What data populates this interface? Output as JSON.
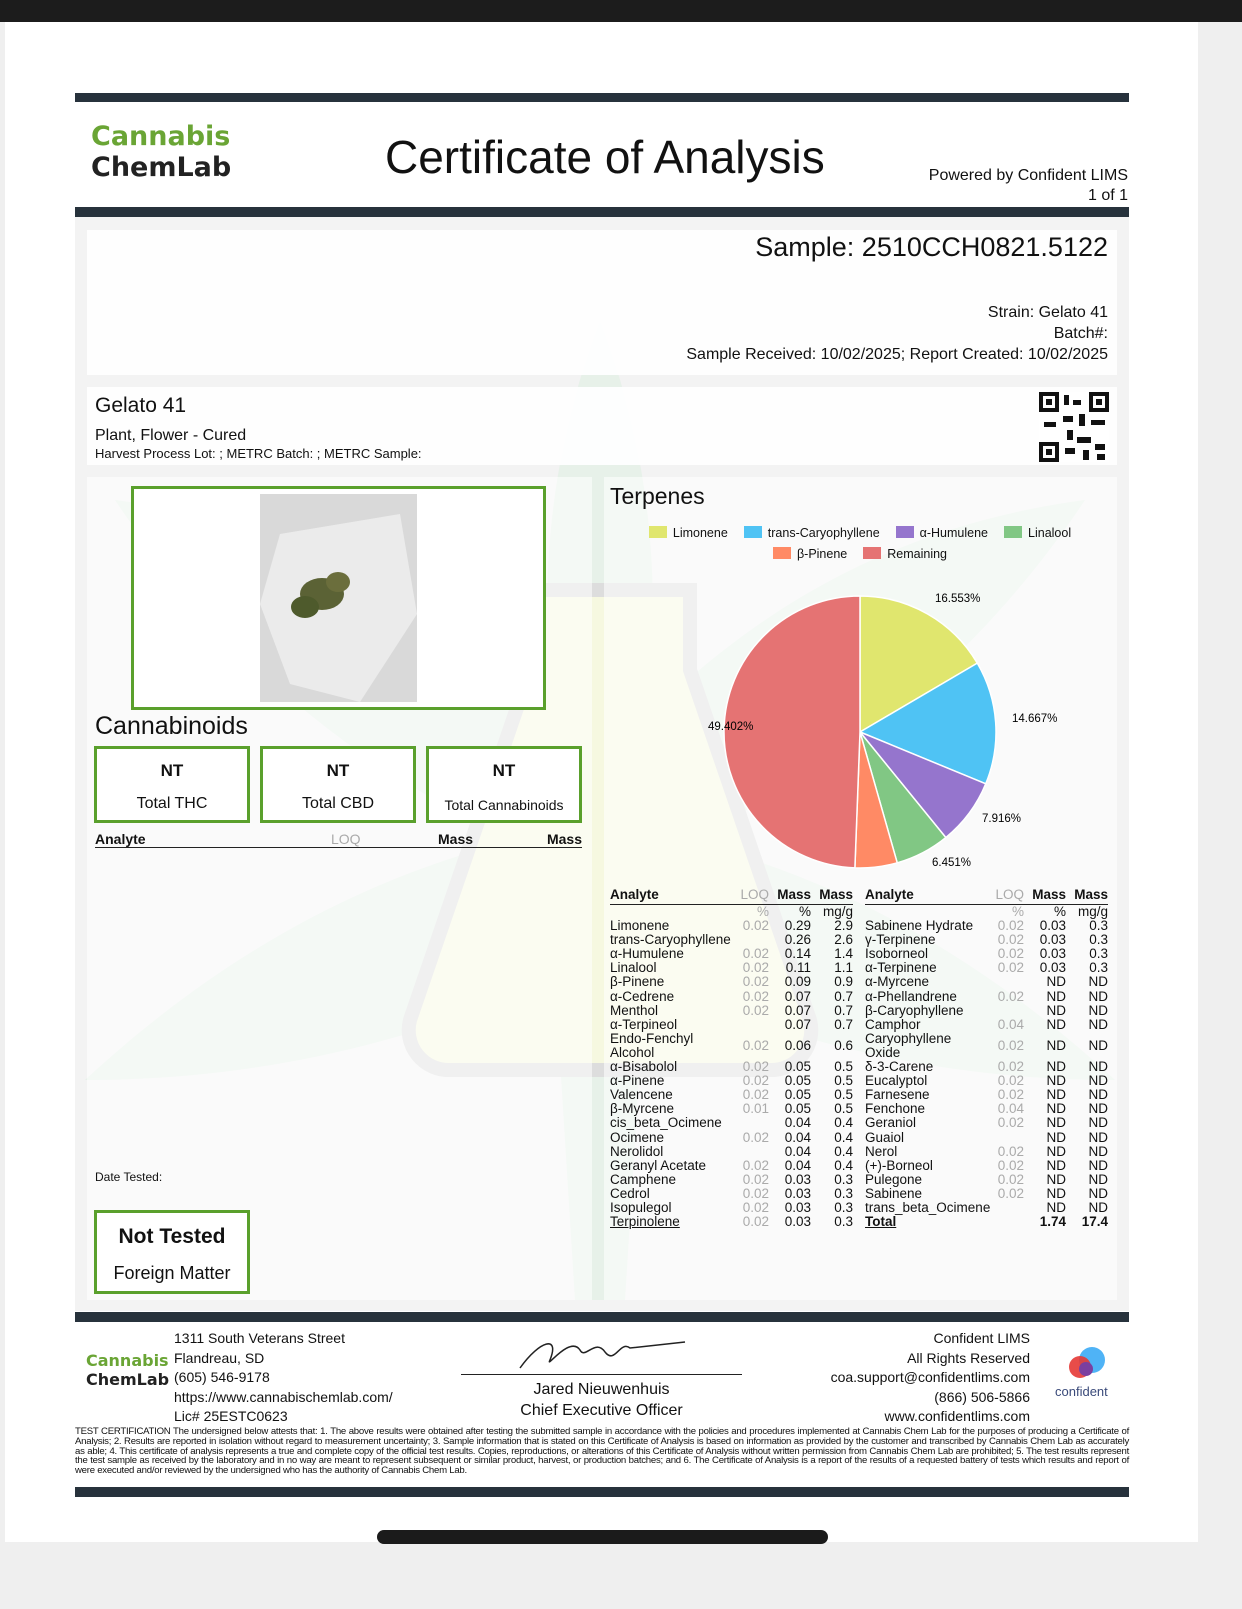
{
  "header": {
    "logo_line1": "Cannabis",
    "logo_line2": "ChemLab",
    "title": "Certificate of Analysis",
    "powered_by": "Powered by Confident LIMS",
    "page": "1 of 1"
  },
  "sample": {
    "id": "Sample: 2510CCH0821.5122",
    "strain": "Strain: Gelato 41",
    "batch": "Batch#:",
    "dates": "Sample Received: 10/02/2025; Report Created: 10/02/2025"
  },
  "product": {
    "name": "Gelato 41",
    "type": "Plant, Flower - Cured",
    "lots": "Harvest Process Lot: ; METRC Batch: ; METRC Sample:"
  },
  "cannabinoids": {
    "title": "Cannabinoids",
    "boxes": [
      {
        "value": "NT",
        "label": "Total THC"
      },
      {
        "value": "NT",
        "label": "Total CBD"
      },
      {
        "value": "NT",
        "label": "Total Cannabinoids"
      }
    ],
    "columns": [
      "Analyte",
      "LOQ",
      "Mass",
      "Mass"
    ],
    "date_tested": "Date Tested:"
  },
  "foreign_matter": {
    "value": "Not Tested",
    "label": "Foreign Matter"
  },
  "terpenes": {
    "title": "Terpenes",
    "legend": [
      {
        "name": "Limonene",
        "color": "#e0e66e"
      },
      {
        "name": "trans-Caryophyllene",
        "color": "#4fc3f4"
      },
      {
        "name": "α-Humulene",
        "color": "#9575cd"
      },
      {
        "name": "Linalool",
        "color": "#81c784"
      },
      {
        "name": "β-Pinene",
        "color": "#ff8a65"
      },
      {
        "name": "Remaining",
        "color": "#e57373"
      }
    ],
    "columns": [
      "Analyte",
      "LOQ",
      "Mass",
      "Mass"
    ],
    "units": [
      "%",
      "%",
      "mg/g"
    ],
    "left_rows": [
      [
        "Limonene",
        "0.02",
        "0.29",
        "2.9"
      ],
      [
        "trans-Caryophyllene",
        "",
        "0.26",
        "2.6"
      ],
      [
        "α-Humulene",
        "0.02",
        "0.14",
        "1.4"
      ],
      [
        "Linalool",
        "0.02",
        "0.11",
        "1.1"
      ],
      [
        "β-Pinene",
        "0.02",
        "0.09",
        "0.9"
      ],
      [
        "α-Cedrene",
        "0.02",
        "0.07",
        "0.7"
      ],
      [
        "Menthol",
        "0.02",
        "0.07",
        "0.7"
      ],
      [
        "α-Terpineol",
        "",
        "0.07",
        "0.7"
      ],
      [
        "Endo-Fenchyl Alcohol",
        "0.02",
        "0.06",
        "0.6"
      ],
      [
        "α-Bisabolol",
        "0.02",
        "0.05",
        "0.5"
      ],
      [
        "α-Pinene",
        "0.02",
        "0.05",
        "0.5"
      ],
      [
        "Valencene",
        "0.02",
        "0.05",
        "0.5"
      ],
      [
        "β-Myrcene",
        "0.01",
        "0.05",
        "0.5"
      ],
      [
        "cis_beta_Ocimene",
        "",
        "0.04",
        "0.4"
      ],
      [
        "Ocimene",
        "0.02",
        "0.04",
        "0.4"
      ],
      [
        "Nerolidol",
        "",
        "0.04",
        "0.4"
      ],
      [
        "Geranyl Acetate",
        "0.02",
        "0.04",
        "0.4"
      ],
      [
        "Camphene",
        "0.02",
        "0.03",
        "0.3"
      ],
      [
        "Cedrol",
        "0.02",
        "0.03",
        "0.3"
      ],
      [
        "Isopulegol",
        "0.02",
        "0.03",
        "0.3"
      ],
      [
        "Terpinolene",
        "0.02",
        "0.03",
        "0.3"
      ]
    ],
    "right_rows": [
      [
        "Sabinene Hydrate",
        "0.02",
        "0.03",
        "0.3"
      ],
      [
        "γ-Terpinene",
        "0.02",
        "0.03",
        "0.3"
      ],
      [
        "Isoborneol",
        "0.02",
        "0.03",
        "0.3"
      ],
      [
        "α-Terpinene",
        "0.02",
        "0.03",
        "0.3"
      ],
      [
        "α-Myrcene",
        "",
        "ND",
        "ND"
      ],
      [
        "α-Phellandrene",
        "0.02",
        "ND",
        "ND"
      ],
      [
        "β-Caryophyllene",
        "",
        "ND",
        "ND"
      ],
      [
        "Camphor",
        "0.04",
        "ND",
        "ND"
      ],
      [
        "Caryophyllene Oxide",
        "0.02",
        "ND",
        "ND"
      ],
      [
        "δ-3-Carene",
        "0.02",
        "ND",
        "ND"
      ],
      [
        "Eucalyptol",
        "0.02",
        "ND",
        "ND"
      ],
      [
        "Farnesene",
        "0.02",
        "ND",
        "ND"
      ],
      [
        "Fenchone",
        "0.04",
        "ND",
        "ND"
      ],
      [
        "Geraniol",
        "0.02",
        "ND",
        "ND"
      ],
      [
        "Guaiol",
        "",
        "ND",
        "ND"
      ],
      [
        "Nerol",
        "0.02",
        "ND",
        "ND"
      ],
      [
        "(+)-Borneol",
        "0.02",
        "ND",
        "ND"
      ],
      [
        "Pulegone",
        "0.02",
        "ND",
        "ND"
      ],
      [
        "Sabinene",
        "0.02",
        "ND",
        "ND"
      ],
      [
        "trans_beta_Ocimene",
        "",
        "ND",
        "ND"
      ],
      [
        "Total",
        "",
        "1.74",
        "17.4"
      ]
    ]
  },
  "chart_data": {
    "type": "pie",
    "title": "Terpenes",
    "slices": [
      {
        "name": "Limonene",
        "value": 16.553,
        "label": "16.553%",
        "color": "#e0e66e"
      },
      {
        "name": "trans-Caryophyllene",
        "value": 14.667,
        "label": "14.667%",
        "color": "#4fc3f4"
      },
      {
        "name": "α-Humulene",
        "value": 7.916,
        "label": "7.916%",
        "color": "#9575cd"
      },
      {
        "name": "Linalool",
        "value": 6.451,
        "label": "6.451%",
        "color": "#81c784"
      },
      {
        "name": "β-Pinene",
        "value": 5.011,
        "label": "",
        "color": "#ff8a65"
      },
      {
        "name": "Remaining",
        "value": 49.402,
        "label": "49.402%",
        "color": "#e57373"
      }
    ],
    "legend_placement": "top"
  },
  "footer": {
    "address": [
      "1311 South Veterans Street",
      "Flandreau, SD",
      "(605) 546-9178",
      "https://www.cannabischemlab.com/",
      "Lic# 25ESTC0623"
    ],
    "signer": "Jared Nieuwenhuis",
    "signer_title": "Chief Executive Officer",
    "lims": [
      "Confident LIMS",
      "All Rights Reserved",
      "coa.support@confidentlims.com",
      "(866) 506-5866",
      "www.confidentlims.com"
    ],
    "confident_logo": "confident",
    "certification": "TEST CERTIFICATION The undersigned below attests that: 1. The above results were obtained after testing the submitted sample in accordance with the policies and procedures implemented at Cannabis Chem Lab for the purposes of producing a Certificate of Analysis; 2. Results are reported in isolation without regard to measurement uncertainty; 3. Sample information that is stated on this Certificate of Analysis is based on information as provided by the customer and transcribed by Cannabis Chem Lab as accurately as able; 4. This certificate of analysis represents a true and complete copy of the official test results. Copies, reproductions, or alterations of this Certificate of Analysis without written permission from Cannabis Chem Lab are prohibited; 5. The test results represent the test sample as received by the laboratory and in no way are meant to represent subsequent or similar product, harvest, or production batches; and 6. The Certificate of Analysis is a report of the results of a requested battery of tests which results and report of were executed and/or reviewed by the undersigned who has the authority of Cannabis Chem Lab."
  }
}
